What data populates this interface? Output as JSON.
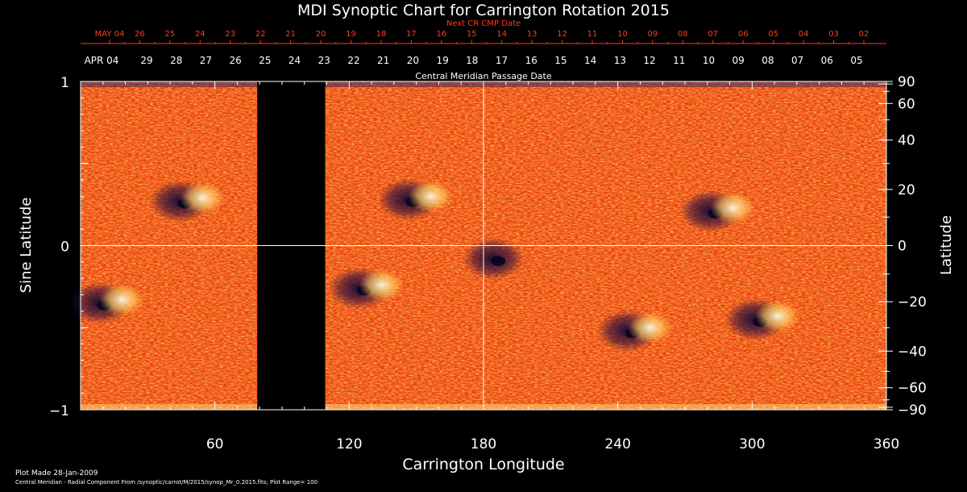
{
  "chart_data": {
    "type": "heatmap",
    "title": "MDI Synoptic Chart for Carrington Rotation 2015",
    "top_axis_label": "Next CR CMP Date",
    "top_axis_ticks": [
      "MAY 04",
      "26",
      "25",
      "24",
      "23",
      "22",
      "21",
      "20",
      "19",
      "18",
      "17",
      "16",
      "15",
      "14",
      "13",
      "12",
      "11",
      "10",
      "09",
      "08",
      "07",
      "06",
      "05",
      "04",
      "03",
      "02"
    ],
    "cmp_axis_label": "Central Meridian Passage Date",
    "cmp_axis_ticks": [
      "APR 04",
      "29",
      "28",
      "27",
      "26",
      "25",
      "24",
      "23",
      "22",
      "21",
      "20",
      "19",
      "18",
      "17",
      "16",
      "15",
      "14",
      "13",
      "12",
      "11",
      "10",
      "09",
      "08",
      "07",
      "06",
      "05"
    ],
    "xlabel": "Carrington Longitude",
    "xlim": [
      0,
      360
    ],
    "x_ticks": [
      60,
      120,
      180,
      240,
      300,
      360
    ],
    "ylabel_left": "Sine Latitude",
    "ylim": [
      -1,
      1
    ],
    "y_ticks_left": [
      -1,
      0,
      1
    ],
    "ylabel_right": "Latitude",
    "y_ticks_right": [
      90,
      60,
      40,
      20,
      0,
      -20,
      -40,
      -60,
      -90
    ],
    "data_gap_longitude": [
      80,
      110
    ],
    "color_range": 100,
    "active_regions": [
      {
        "lon": 48,
        "sinlat": 0.27,
        "polarity": "mixed"
      },
      {
        "lon": 12,
        "sinlat": -0.35,
        "polarity": "mixed"
      },
      {
        "lon": 150,
        "sinlat": 0.28,
        "polarity": "mixed"
      },
      {
        "lon": 128,
        "sinlat": -0.26,
        "polarity": "mixed"
      },
      {
        "lon": 188,
        "sinlat": -0.08,
        "polarity": "negative"
      },
      {
        "lon": 248,
        "sinlat": -0.52,
        "polarity": "mixed"
      },
      {
        "lon": 285,
        "sinlat": 0.21,
        "polarity": "mixed"
      },
      {
        "lon": 305,
        "sinlat": -0.45,
        "polarity": "mixed"
      }
    ]
  },
  "footer": {
    "plot_made": "Plot Made 28-Jan-2009",
    "info": "Central Meridian - Radial Component From /synoptic/carrot/M/2015/synop_Mr_0.2015.fits; Plot Range=  100"
  }
}
